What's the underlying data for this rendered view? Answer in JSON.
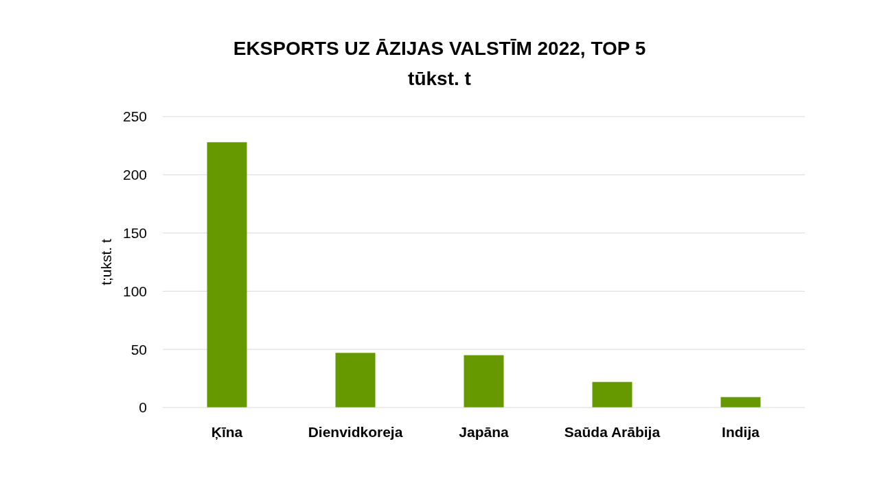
{
  "chart_data": {
    "type": "bar",
    "title": "EKSPORTS UZ ĀZIJAS VALSTĪM 2022, TOP 5",
    "subtitle": "tūkst. t",
    "ylabel": "t;ukst. t",
    "categories": [
      "Ķīna",
      "Dienvidkoreja",
      "Japāna",
      "Saūda Arābija",
      "Indija"
    ],
    "values": [
      228,
      47,
      45,
      22,
      9
    ],
    "color": "#669900",
    "ylim": [
      0,
      250
    ],
    "yticks": [
      0,
      50,
      100,
      150,
      200,
      250
    ],
    "grid": "y"
  }
}
